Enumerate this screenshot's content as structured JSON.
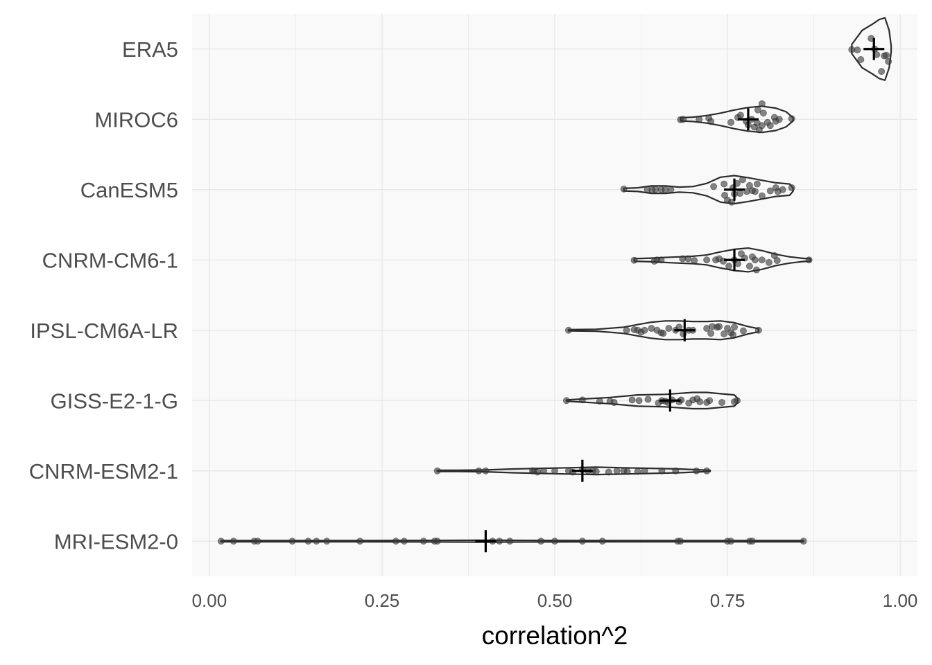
{
  "chart_data": {
    "type": "violin",
    "xlabel": "correlation^2",
    "ylabel": "",
    "xlim": [
      -0.025,
      1.025
    ],
    "x_ticks": [
      {
        "value": 0,
        "label": "0.00"
      },
      {
        "value": 0.25,
        "label": "0.25"
      },
      {
        "value": 0.5,
        "label": "0.50"
      },
      {
        "value": 0.75,
        "label": "0.75"
      },
      {
        "value": 1,
        "label": "1.00"
      }
    ],
    "grid": true,
    "colors": {
      "panel": "#f9f9f9",
      "grid": "#e6e6e6",
      "outline": "#2b2b2b",
      "point": "#3a3a3a",
      "mean_marker": "#000000"
    },
    "series": [
      {
        "name": "ERA5",
        "min": 0.93,
        "max": 0.987,
        "mean": 0.962,
        "profile": [
          [
            0.93,
            0.15
          ],
          [
            0.945,
            0.6
          ],
          [
            0.96,
            0.8
          ],
          [
            0.97,
            0.95
          ],
          [
            0.978,
            1.0
          ],
          [
            0.984,
            0.6
          ],
          [
            0.987,
            0.1
          ]
        ],
        "points": [
          [
            0.93,
            0.02
          ],
          [
            0.938,
            0.03
          ],
          [
            0.943,
            0.34
          ],
          [
            0.958,
            -0.34
          ],
          [
            0.963,
            0.0
          ],
          [
            0.966,
            0.18
          ],
          [
            0.973,
            0.72
          ],
          [
            0.977,
            0.22
          ],
          [
            0.98,
            0.2
          ],
          [
            0.983,
            0.4
          ]
        ]
      },
      {
        "name": "MIROC6",
        "min": 0.682,
        "max": 0.845,
        "mean": 0.78,
        "profile": [
          [
            0.682,
            0.05
          ],
          [
            0.7,
            0.07
          ],
          [
            0.72,
            0.12
          ],
          [
            0.74,
            0.2
          ],
          [
            0.76,
            0.3
          ],
          [
            0.78,
            0.38
          ],
          [
            0.8,
            0.42
          ],
          [
            0.82,
            0.36
          ],
          [
            0.835,
            0.24
          ],
          [
            0.845,
            0.05
          ]
        ],
        "points": [
          [
            0.682,
            0.01
          ],
          [
            0.686,
            0.0
          ],
          [
            0.709,
            0.0
          ],
          [
            0.723,
            -0.04
          ],
          [
            0.726,
            0.07
          ],
          [
            0.755,
            0.1
          ],
          [
            0.765,
            -0.06
          ],
          [
            0.769,
            -0.13
          ],
          [
            0.777,
            0.06
          ],
          [
            0.78,
            0.18
          ],
          [
            0.785,
            0.0
          ],
          [
            0.789,
            0.25
          ],
          [
            0.793,
            0.12
          ],
          [
            0.794,
            -0.3
          ],
          [
            0.796,
            0.34
          ],
          [
            0.8,
            0.2
          ],
          [
            0.802,
            -0.2
          ],
          [
            0.808,
            0.1
          ],
          [
            0.812,
            0.2
          ],
          [
            0.818,
            -0.06
          ],
          [
            0.82,
            0.06
          ],
          [
            0.825,
            0.0
          ],
          [
            0.8,
            -0.5
          ],
          [
            0.843,
            -0.02
          ]
        ]
      },
      {
        "name": "CanESM5",
        "min": 0.6,
        "max": 0.845,
        "mean": 0.76,
        "profile": [
          [
            0.6,
            0.04
          ],
          [
            0.62,
            0.06
          ],
          [
            0.64,
            0.12
          ],
          [
            0.66,
            0.12
          ],
          [
            0.68,
            0.08
          ],
          [
            0.7,
            0.1
          ],
          [
            0.72,
            0.2
          ],
          [
            0.74,
            0.4
          ],
          [
            0.76,
            0.45
          ],
          [
            0.78,
            0.38
          ],
          [
            0.8,
            0.3
          ],
          [
            0.82,
            0.22
          ],
          [
            0.84,
            0.18
          ],
          [
            0.845,
            0.05
          ]
        ],
        "points": [
          [
            0.6,
            -0.02
          ],
          [
            0.634,
            0.0
          ],
          [
            0.641,
            0.01
          ],
          [
            0.646,
            -0.01
          ],
          [
            0.654,
            0.0
          ],
          [
            0.66,
            0.0
          ],
          [
            0.668,
            0.0
          ],
          [
            0.73,
            -0.1
          ],
          [
            0.745,
            -0.18
          ],
          [
            0.746,
            0.18
          ],
          [
            0.75,
            0.34
          ],
          [
            0.756,
            0.4
          ],
          [
            0.758,
            -0.06
          ],
          [
            0.76,
            0.14
          ],
          [
            0.764,
            -0.2
          ],
          [
            0.768,
            0.12
          ],
          [
            0.772,
            -0.32
          ],
          [
            0.778,
            0.06
          ],
          [
            0.782,
            -0.13
          ],
          [
            0.786,
            0.03
          ],
          [
            0.79,
            0.06
          ],
          [
            0.793,
            -0.18
          ],
          [
            0.8,
            0.2
          ],
          [
            0.812,
            0.04
          ],
          [
            0.82,
            -0.06
          ],
          [
            0.823,
            0.06
          ],
          [
            0.83,
            0.0
          ],
          [
            0.843,
            -0.06
          ]
        ]
      },
      {
        "name": "CNRM-CM6-1",
        "min": 0.615,
        "max": 0.87,
        "mean": 0.76,
        "profile": [
          [
            0.615,
            0.04
          ],
          [
            0.64,
            0.06
          ],
          [
            0.66,
            0.08
          ],
          [
            0.68,
            0.1
          ],
          [
            0.7,
            0.12
          ],
          [
            0.72,
            0.16
          ],
          [
            0.74,
            0.26
          ],
          [
            0.76,
            0.34
          ],
          [
            0.78,
            0.38
          ],
          [
            0.8,
            0.3
          ],
          [
            0.82,
            0.18
          ],
          [
            0.84,
            0.1
          ],
          [
            0.86,
            0.05
          ],
          [
            0.87,
            0.04
          ]
        ],
        "points": [
          [
            0.615,
            0.01
          ],
          [
            0.644,
            0.04
          ],
          [
            0.648,
            0.0
          ],
          [
            0.654,
            0.0
          ],
          [
            0.685,
            -0.04
          ],
          [
            0.693,
            -0.04
          ],
          [
            0.702,
            0.02
          ],
          [
            0.72,
            0.0
          ],
          [
            0.733,
            0.0
          ],
          [
            0.738,
            -0.04
          ],
          [
            0.744,
            0.04
          ],
          [
            0.752,
            0.2
          ],
          [
            0.76,
            0.0
          ],
          [
            0.765,
            0.12
          ],
          [
            0.77,
            -0.2
          ],
          [
            0.775,
            -0.06
          ],
          [
            0.782,
            0.2
          ],
          [
            0.786,
            -0.1
          ],
          [
            0.79,
            0.0
          ],
          [
            0.792,
            0.32
          ],
          [
            0.8,
            0.0
          ],
          [
            0.81,
            0.08
          ],
          [
            0.818,
            -0.14
          ],
          [
            0.822,
            0.02
          ],
          [
            0.868,
            0.0
          ]
        ]
      },
      {
        "name": "IPSL-CM6A-LR",
        "min": 0.52,
        "max": 0.795,
        "mean": 0.688,
        "profile": [
          [
            0.52,
            0.02
          ],
          [
            0.56,
            0.03
          ],
          [
            0.6,
            0.1
          ],
          [
            0.62,
            0.18
          ],
          [
            0.64,
            0.26
          ],
          [
            0.66,
            0.3
          ],
          [
            0.68,
            0.3
          ],
          [
            0.7,
            0.28
          ],
          [
            0.72,
            0.28
          ],
          [
            0.74,
            0.3
          ],
          [
            0.76,
            0.24
          ],
          [
            0.78,
            0.12
          ],
          [
            0.795,
            0.05
          ]
        ],
        "points": [
          [
            0.52,
            0.0
          ],
          [
            0.604,
            0.0
          ],
          [
            0.615,
            -0.02
          ],
          [
            0.62,
            0.0
          ],
          [
            0.625,
            0.06
          ],
          [
            0.63,
            0.0
          ],
          [
            0.64,
            -0.06
          ],
          [
            0.648,
            0.0
          ],
          [
            0.654,
            0.08
          ],
          [
            0.657,
            0.1
          ],
          [
            0.665,
            -0.06
          ],
          [
            0.675,
            0.0
          ],
          [
            0.68,
            -0.1
          ],
          [
            0.686,
            0.12
          ],
          [
            0.694,
            0.0
          ],
          [
            0.7,
            0.0
          ],
          [
            0.72,
            -0.06
          ],
          [
            0.726,
            0.1
          ],
          [
            0.728,
            -0.12
          ],
          [
            0.735,
            -0.1
          ],
          [
            0.738,
            -0.12
          ],
          [
            0.745,
            0.12
          ],
          [
            0.75,
            -0.06
          ],
          [
            0.755,
            0.08
          ],
          [
            0.758,
            0.14
          ],
          [
            0.76,
            -0.1
          ],
          [
            0.773,
            0.02
          ],
          [
            0.795,
            0.0
          ]
        ]
      },
      {
        "name": "GISS-E2-1-G",
        "min": 0.517,
        "max": 0.765,
        "mean": 0.667,
        "profile": [
          [
            0.517,
            0.02
          ],
          [
            0.54,
            0.05
          ],
          [
            0.58,
            0.1
          ],
          [
            0.62,
            0.18
          ],
          [
            0.66,
            0.2
          ],
          [
            0.7,
            0.26
          ],
          [
            0.72,
            0.26
          ],
          [
            0.74,
            0.22
          ],
          [
            0.76,
            0.18
          ],
          [
            0.765,
            0.06
          ]
        ],
        "points": [
          [
            0.517,
            0.0
          ],
          [
            0.54,
            -0.02
          ],
          [
            0.565,
            0.02
          ],
          [
            0.58,
            0.02
          ],
          [
            0.586,
            0.06
          ],
          [
            0.612,
            -0.02
          ],
          [
            0.622,
            0.0
          ],
          [
            0.635,
            -0.04
          ],
          [
            0.65,
            0.08
          ],
          [
            0.655,
            0.0
          ],
          [
            0.66,
            0.02
          ],
          [
            0.664,
            0.06
          ],
          [
            0.67,
            -0.02
          ],
          [
            0.68,
            0.04
          ],
          [
            0.683,
            -0.02
          ],
          [
            0.694,
            0.08
          ],
          [
            0.7,
            -0.02
          ],
          [
            0.706,
            -0.06
          ],
          [
            0.71,
            0.04
          ],
          [
            0.72,
            0.06
          ],
          [
            0.724,
            0.0
          ],
          [
            0.742,
            0.06
          ],
          [
            0.76,
            0.04
          ],
          [
            0.764,
            0.0
          ]
        ]
      },
      {
        "name": "CNRM-ESM2-1",
        "min": 0.33,
        "max": 0.725,
        "mean": 0.54,
        "profile": [
          [
            0.33,
            0.02
          ],
          [
            0.36,
            0.02
          ],
          [
            0.4,
            0.03
          ],
          [
            0.44,
            0.06
          ],
          [
            0.48,
            0.08
          ],
          [
            0.52,
            0.1
          ],
          [
            0.56,
            0.12
          ],
          [
            0.6,
            0.1
          ],
          [
            0.64,
            0.08
          ],
          [
            0.68,
            0.06
          ],
          [
            0.725,
            0.02
          ]
        ],
        "points": [
          [
            0.33,
            0.0
          ],
          [
            0.39,
            0.0
          ],
          [
            0.4,
            0.0
          ],
          [
            0.468,
            0.0
          ],
          [
            0.47,
            0.0
          ],
          [
            0.475,
            0.04
          ],
          [
            0.484,
            0.0
          ],
          [
            0.5,
            0.0
          ],
          [
            0.52,
            0.0
          ],
          [
            0.526,
            0.04
          ],
          [
            0.54,
            -0.04
          ],
          [
            0.548,
            0.0
          ],
          [
            0.555,
            0.0
          ],
          [
            0.56,
            0.02
          ],
          [
            0.578,
            0.04
          ],
          [
            0.59,
            0.0
          ],
          [
            0.6,
            0.0
          ],
          [
            0.605,
            0.02
          ],
          [
            0.62,
            0.02
          ],
          [
            0.63,
            0.0
          ],
          [
            0.655,
            0.0
          ],
          [
            0.675,
            0.0
          ],
          [
            0.705,
            0.0
          ],
          [
            0.72,
            0.0
          ]
        ]
      },
      {
        "name": "MRI-ESM2-0",
        "min": 0.017,
        "max": 0.86,
        "mean": 0.4,
        "profile": [
          [
            0.017,
            0.02
          ],
          [
            0.2,
            0.02
          ],
          [
            0.4,
            0.03
          ],
          [
            0.6,
            0.02
          ],
          [
            0.86,
            0.02
          ]
        ],
        "points": [
          [
            0.017,
            0.0
          ],
          [
            0.035,
            0.0
          ],
          [
            0.065,
            0.0
          ],
          [
            0.07,
            0.0
          ],
          [
            0.12,
            0.0
          ],
          [
            0.143,
            0.0
          ],
          [
            0.155,
            0.0
          ],
          [
            0.17,
            0.0
          ],
          [
            0.218,
            0.0
          ],
          [
            0.27,
            0.0
          ],
          [
            0.282,
            0.0
          ],
          [
            0.31,
            0.0
          ],
          [
            0.326,
            0.0
          ],
          [
            0.33,
            0.0
          ],
          [
            0.41,
            0.0
          ],
          [
            0.42,
            0.0
          ],
          [
            0.435,
            0.0
          ],
          [
            0.48,
            0.0
          ],
          [
            0.5,
            0.0
          ],
          [
            0.54,
            0.0
          ],
          [
            0.569,
            0.0
          ],
          [
            0.678,
            0.0
          ],
          [
            0.682,
            0.0
          ],
          [
            0.75,
            0.0
          ],
          [
            0.755,
            0.0
          ],
          [
            0.782,
            0.0
          ],
          [
            0.786,
            0.0
          ],
          [
            0.86,
            0.0
          ]
        ]
      }
    ]
  }
}
